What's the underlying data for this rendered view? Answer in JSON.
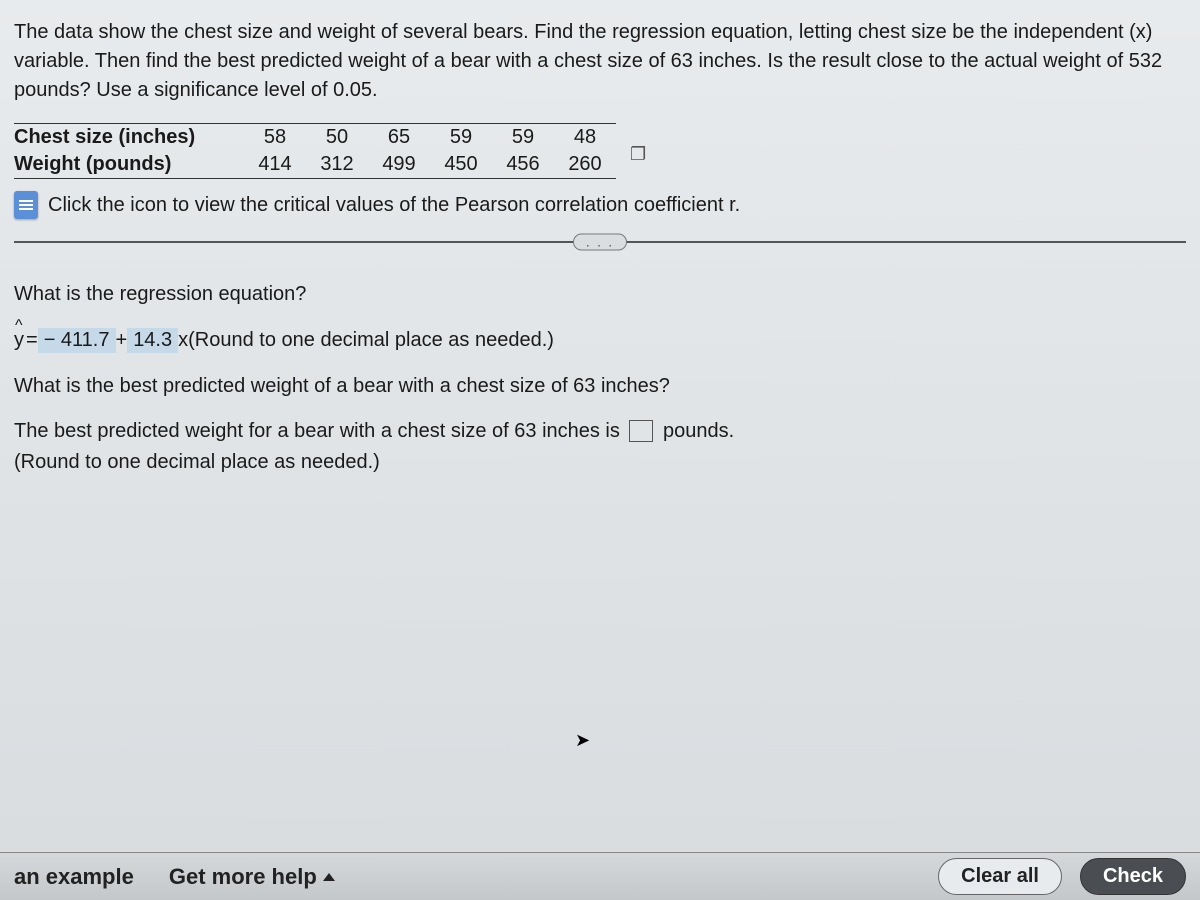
{
  "question": {
    "intro": "The data show the chest size and weight of several bears. Find the regression equation, letting chest size be the independent (x) variable. Then find the best predicted weight of a bear with a chest size of 63 inches. Is the result close to the actual weight of 532 pounds? Use a significance level of 0.05."
  },
  "table": {
    "row1_label": "Chest size (inches)",
    "row2_label": "Weight (pounds)",
    "columns": [
      "58",
      "50",
      "65",
      "59",
      "59",
      "48"
    ],
    "row2_values": [
      "414",
      "312",
      "499",
      "450",
      "456",
      "260"
    ]
  },
  "link": {
    "text": "Click the icon to view the critical values of the Pearson correlation coefficient r."
  },
  "divider_ellipsis": ". . .",
  "q1": {
    "prompt": "What is the regression equation?",
    "y_label": "y",
    "equals": " = ",
    "intercept": "− 411.7",
    "plus": " + ",
    "slope": "14.3",
    "x_suffix": " x ",
    "hint": "(Round to one decimal place as needed.)"
  },
  "q2": {
    "prompt": "What is the best predicted weight of a bear with a chest size of 63 inches?",
    "line_before": "The best predicted weight for a bear with a chest size of 63 inches is ",
    "line_after": " pounds.",
    "hint": "(Round to one decimal place as needed.)"
  },
  "bottom": {
    "example": "an example",
    "help": "Get more help",
    "clear": "Clear all",
    "check": "Check"
  }
}
